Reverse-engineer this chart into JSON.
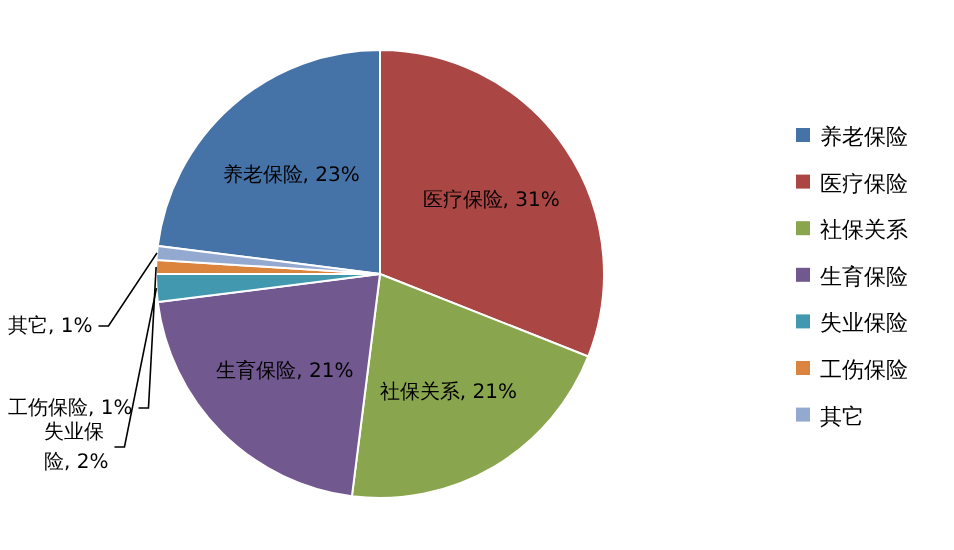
{
  "chart_data": {
    "type": "pie",
    "categories": [
      "养老保险",
      "医疗保险",
      "社保关系",
      "生育保险",
      "失业保险",
      "工伤保险",
      "其它"
    ],
    "values": [
      23,
      31,
      21,
      21,
      2,
      1,
      1
    ],
    "colors": [
      "#4572a7",
      "#aa4643",
      "#89a54e",
      "#71588f",
      "#4198af",
      "#db843d",
      "#93a9cf"
    ],
    "value_labels": [
      "养老保险, 23%",
      "医疗保险, 31%",
      "社保关系, 21%",
      "生育保险, 21%",
      "失业保险, 2%",
      "工伤保险, 1%",
      "其它, 1%"
    ],
    "legend": "right"
  }
}
